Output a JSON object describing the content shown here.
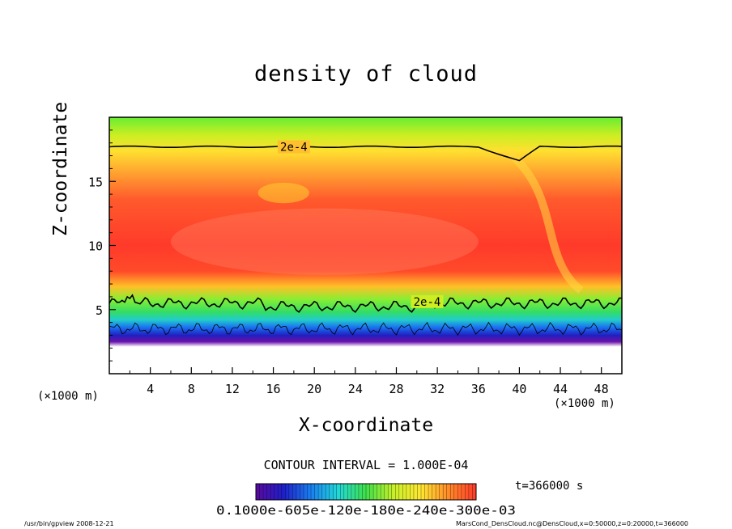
{
  "chart_data": {
    "type": "heatmap",
    "title": "density of cloud",
    "xlabel": "X-coordinate",
    "ylabel": "Z-coordinate",
    "x_unit_left": "(×1000 m)",
    "x_unit_right": "(×1000 m)",
    "xlim": [
      0,
      50
    ],
    "ylim": [
      0,
      20
    ],
    "xticks": [
      4,
      8,
      12,
      16,
      20,
      24,
      28,
      32,
      36,
      40,
      44,
      48
    ],
    "yticks": [
      5,
      10,
      15
    ],
    "contour_interval_text": "CONTOUR INTERVAL = 1.000E-04",
    "contour_label": "2e-4",
    "time_text": "t=366000 s",
    "colorbar_labels": "0.1000e-605e-120e-180e-240e-300e-03",
    "colorscale": [
      "#5a0aa0",
      "#1e1ec8",
      "#1a7ff0",
      "#22d8d8",
      "#3ee04a",
      "#c8f028",
      "#ffe632",
      "#ff8a28",
      "#ff3a2a"
    ],
    "field_summary": {
      "cloud_base_z": 2.5,
      "lower_contour_2e-4_z": 5.5,
      "upper_contour_2e-4_z": 17.7,
      "max_density_z_range": [
        7,
        13
      ]
    }
  },
  "footer": {
    "left": "/usr/bin/gpview   2008-12-21",
    "right": "MarsCond_DensCloud.nc@DensCloud,x=0:50000,z=0:20000,t=366000"
  }
}
